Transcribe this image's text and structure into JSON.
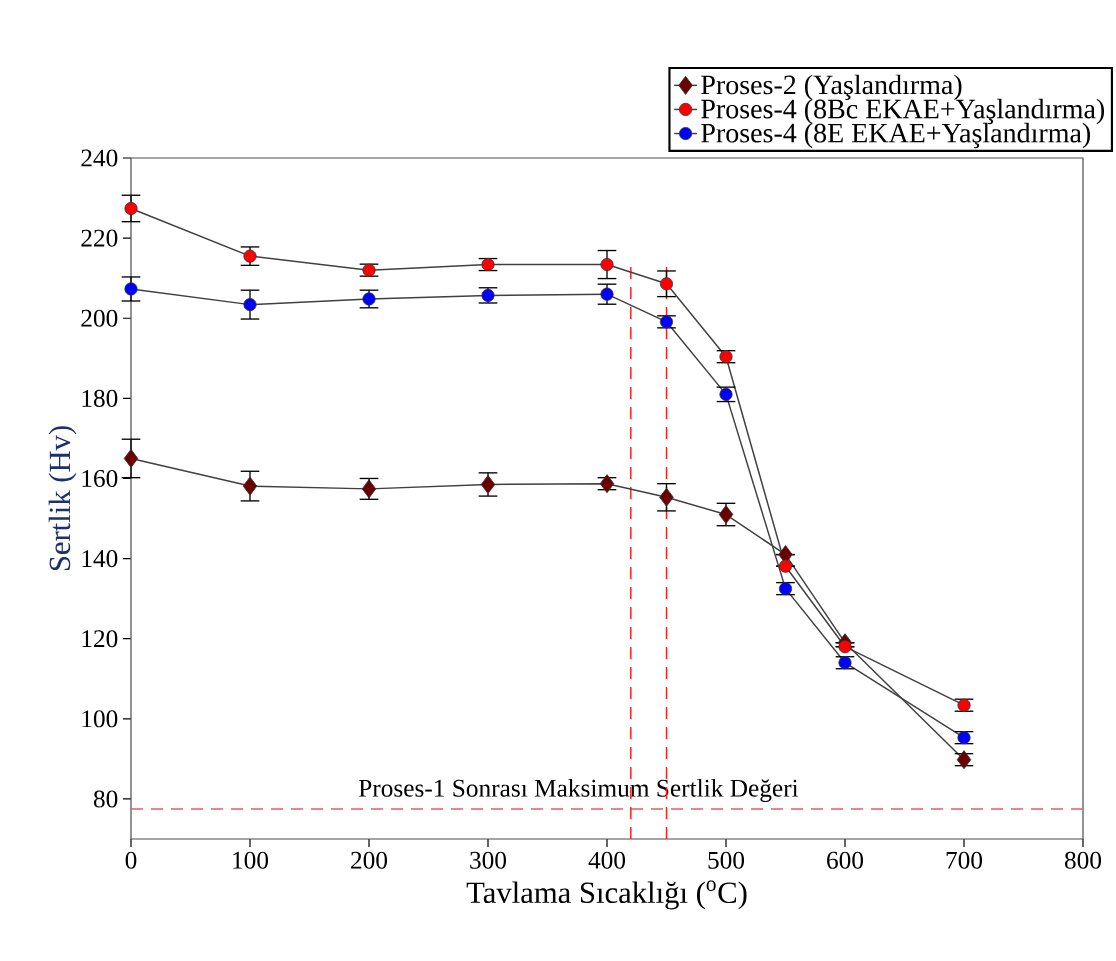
{
  "chart_data": {
    "type": "line",
    "xlabel": "Tavlama Sıcaklığı ($^{o}$C)",
    "ylabel": "Sertlik (Hv)",
    "x": [
      0,
      100,
      200,
      300,
      400,
      450,
      500,
      550,
      600,
      700
    ],
    "series": [
      {
        "name": "Proses-2 (Yaşlandırma)",
        "color": "#6b0000",
        "marker": "diamond",
        "values": [
          165,
          158.1,
          157.4,
          158.5,
          158.7,
          155.3,
          151,
          141,
          119,
          89.8
        ],
        "errors": [
          4.8,
          3.7,
          2.6,
          2.9,
          1.5,
          3.4,
          2.8,
          null,
          null,
          1.5
        ]
      },
      {
        "name": "Proses-4 (8Bc EKAE+Yaşlandırma)",
        "color": "#ff0000",
        "marker": "circle",
        "values": [
          227.4,
          215.5,
          212,
          213.4,
          213.4,
          208.6,
          190.4,
          138.1,
          118,
          103.4
        ],
        "errors": [
          3.3,
          2.3,
          1.5,
          1.5,
          3.5,
          3.2,
          1.5,
          null,
          null,
          1.5
        ]
      },
      {
        "name": "Proses-4 (8E EKAE+Yaşlandırma)",
        "color": "#0000ff",
        "marker": "circle",
        "values": [
          207.3,
          203.4,
          204.8,
          205.7,
          206,
          199.1,
          181,
          132.5,
          114,
          95.3
        ],
        "errors": [
          3,
          3.6,
          2.2,
          1.9,
          2.5,
          1.5,
          1.8,
          1.5,
          1.5,
          1.5
        ]
      }
    ],
    "xlim": [
      0,
      800
    ],
    "xticks": [
      0,
      100,
      200,
      300,
      400,
      500,
      600,
      700,
      800
    ],
    "ylim": [
      70,
      240
    ],
    "yticks": [
      80,
      100,
      120,
      140,
      160,
      180,
      200,
      220,
      240
    ],
    "ref_lines": [
      {
        "axis": "y",
        "value": 77.5,
        "label": "Proses-1 Sonrası Maksimum Sertlik Değeri",
        "color": "#e06060",
        "line_style": "dashed"
      },
      {
        "axis": "x",
        "value": 420,
        "color": "#ff2020",
        "line_style": "dashed"
      },
      {
        "axis": "x",
        "value": 450,
        "color": "#ff2020",
        "line_style": "dashed"
      }
    ],
    "grid": false,
    "legend": "top right",
    "line_style": "solid"
  }
}
